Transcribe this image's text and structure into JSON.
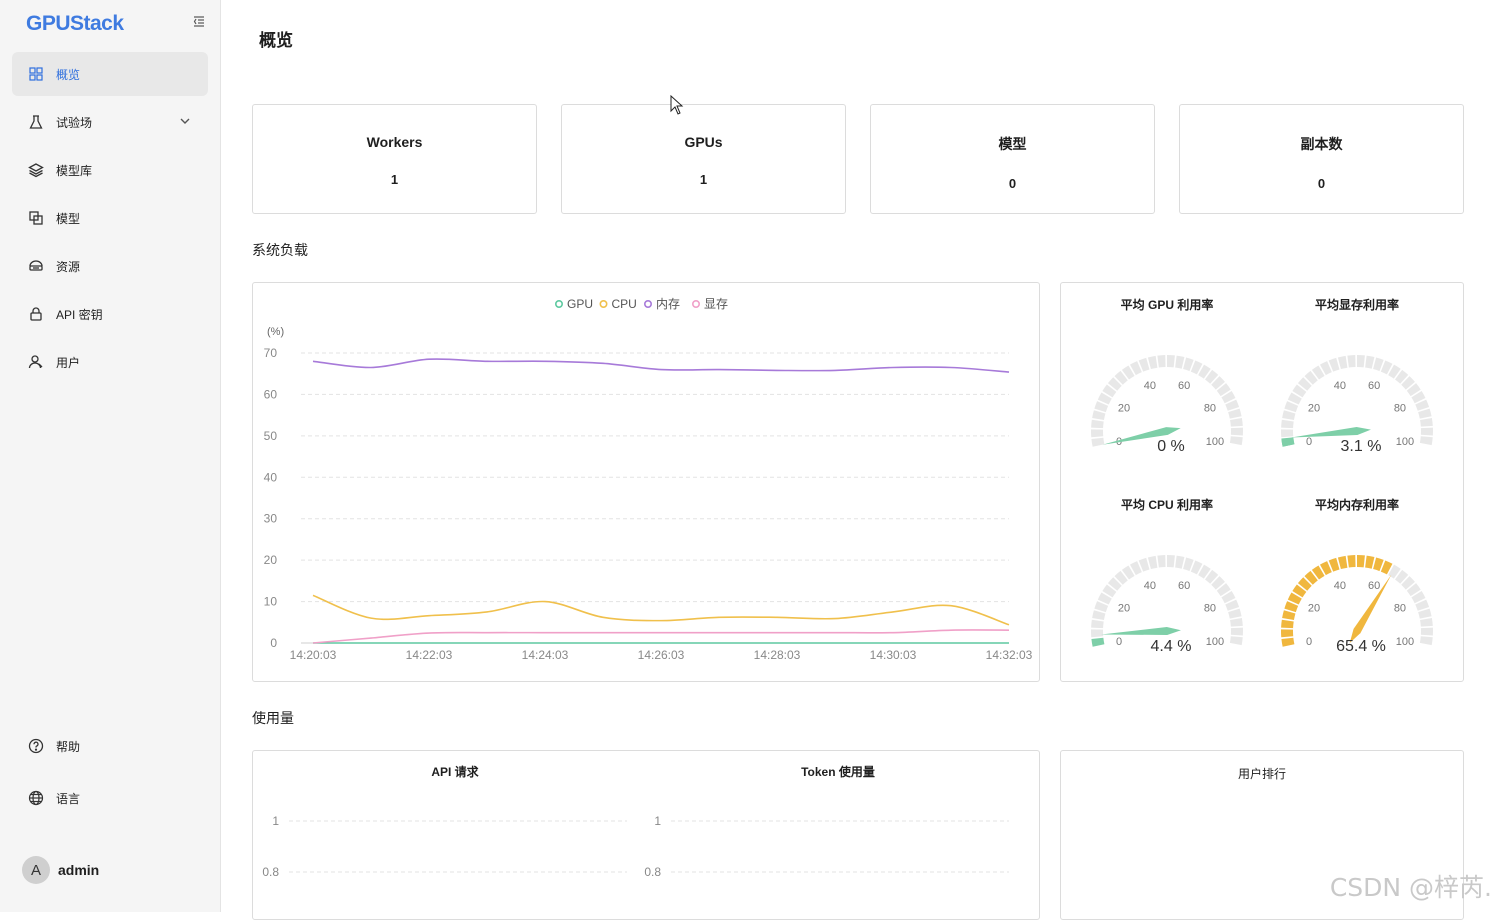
{
  "brand": "GPUStack",
  "nav": [
    {
      "label": "概览",
      "icon": "dashboard-icon",
      "active": true
    },
    {
      "label": "试验场",
      "icon": "flask-icon",
      "expandable": true
    },
    {
      "label": "模型库",
      "icon": "layers-icon"
    },
    {
      "label": "模型",
      "icon": "models-icon"
    },
    {
      "label": "资源",
      "icon": "resources-icon"
    },
    {
      "label": "API 密钥",
      "icon": "lock-icon"
    },
    {
      "label": "用户",
      "icon": "users-icon"
    }
  ],
  "bottom_nav": [
    {
      "label": "帮助",
      "icon": "help-icon"
    },
    {
      "label": "语言",
      "icon": "globe-icon"
    }
  ],
  "user": {
    "avatar_letter": "A",
    "name": "admin"
  },
  "page_title": "概览",
  "stats": [
    {
      "label": "Workers",
      "value": "1"
    },
    {
      "label": "GPUs",
      "value": "1"
    },
    {
      "label": "模型",
      "value": "0"
    },
    {
      "label": "副本数",
      "value": "0"
    }
  ],
  "system_load_title": "系统负载",
  "usage_title": "使用量",
  "user_rank_title": "用户排行",
  "gauges": [
    {
      "title": "平均 GPU 利用率",
      "value": 0,
      "display": "0 %",
      "color": "#7ecfa8"
    },
    {
      "title": "平均显存利用率",
      "value": 3.1,
      "display": "3.1 %",
      "color": "#7ecfa8"
    },
    {
      "title": "平均 CPU 利用率",
      "value": 4.4,
      "display": "4.4 %",
      "color": "#7ecfa8"
    },
    {
      "title": "平均内存利用率",
      "value": 65.4,
      "display": "65.4 %",
      "color": "#f0b73e"
    }
  ],
  "gauge_ticks": [
    "0",
    "20",
    "40",
    "60",
    "80",
    "100"
  ],
  "chart_data": [
    {
      "type": "line",
      "ylabel": "(%)",
      "ylim": [
        0,
        70
      ],
      "yticks": [
        0,
        10,
        20,
        30,
        40,
        50,
        60,
        70
      ],
      "x": [
        "14:20:03",
        "14:21:03",
        "14:22:03",
        "14:23:03",
        "14:24:03",
        "14:25:03",
        "14:26:03",
        "14:27:03",
        "14:28:03",
        "14:29:03",
        "14:30:03",
        "14:31:03",
        "14:32:03"
      ],
      "xticks": [
        "14:20:03",
        "14:22:03",
        "14:24:03",
        "14:26:03",
        "14:28:03",
        "14:30:03",
        "14:32:03"
      ],
      "legend": "top-center",
      "grid": true,
      "series": [
        {
          "name": "GPU",
          "color": "#5ec9a0",
          "values": [
            0,
            0,
            0,
            0,
            0,
            0,
            0,
            0,
            0,
            0,
            0,
            0,
            0
          ]
        },
        {
          "name": "CPU",
          "color": "#f0c04c",
          "values": [
            11.5,
            6,
            6.6,
            7.5,
            10,
            6.2,
            5.4,
            6.2,
            6.2,
            5.9,
            7.5,
            9,
            4.4
          ]
        },
        {
          "name": "内存",
          "color": "#a77ad9",
          "values": [
            68,
            66.5,
            68.5,
            68,
            68,
            67.5,
            66,
            66,
            65.8,
            65.8,
            66.5,
            66.5,
            65.4
          ]
        },
        {
          "name": "显存",
          "color": "#f0a0c8",
          "values": [
            0,
            1.2,
            2.4,
            2.5,
            2.5,
            2.5,
            2.5,
            2.5,
            2.5,
            2.5,
            2.5,
            3.1,
            3.1
          ]
        }
      ]
    },
    {
      "type": "bar",
      "title": "API 请求",
      "yticks": [
        "1",
        "0.8"
      ],
      "series": []
    },
    {
      "type": "bar",
      "title": "Token 使用量",
      "yticks": [
        "1",
        "0.8"
      ],
      "series": []
    }
  ],
  "watermark": "CSDN @梓芮."
}
